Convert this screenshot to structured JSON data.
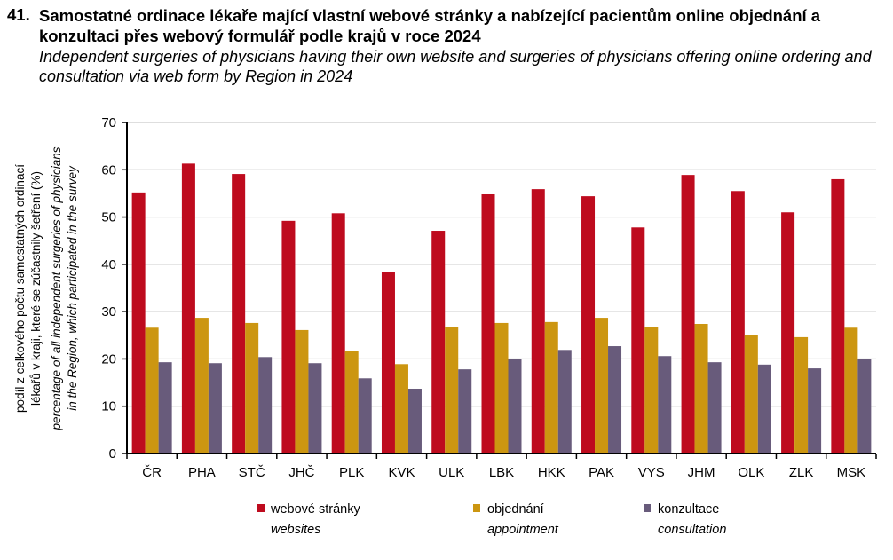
{
  "title": {
    "number": "41.",
    "cz": "Samostatné ordinace lékaře mající vlastní webové stránky a nabízející pacientům online objednání a konzultaci přes webový formulář podle krajů v roce 2024",
    "en": "Independent surgeries of physicians having their own website and surgeries of physicians offering online ordering and consultation via web form by Region in 2024"
  },
  "chart_data": {
    "type": "bar",
    "ylabel_cz_line1": "podíl z celkového počtu samostatných ordinací",
    "ylabel_cz_line2": "lékařů v kraji, které se zúčastnily šetření (%)",
    "ylabel_en_line1": "percentage of all independent surgeries of physicians",
    "ylabel_en_line2": "in the Region, which participated in the survey",
    "ylim": [
      0,
      70
    ],
    "yticks": [
      0,
      10,
      20,
      30,
      40,
      50,
      60,
      70
    ],
    "grid": true,
    "legend_position": "bottom",
    "categories": [
      "ČR",
      "PHA",
      "STČ",
      "JHČ",
      "PLK",
      "KVK",
      "ULK",
      "LBK",
      "HKK",
      "PAK",
      "VYS",
      "JHM",
      "OLK",
      "ZLK",
      "MSK"
    ],
    "series": [
      {
        "name": "webové stránky",
        "name_en": "websites",
        "color": "#be0b1e",
        "values": [
          55.2,
          61.3,
          59.1,
          49.2,
          50.8,
          38.3,
          47.1,
          54.8,
          55.9,
          54.4,
          47.8,
          58.9,
          55.5,
          51.0,
          58.0
        ]
      },
      {
        "name": "objednání",
        "name_en": "appointment",
        "color": "#cc9611",
        "values": [
          26.6,
          28.7,
          27.6,
          26.1,
          21.6,
          18.9,
          26.8,
          27.6,
          27.8,
          28.7,
          26.8,
          27.4,
          25.1,
          24.6,
          26.6
        ]
      },
      {
        "name": "konzultace",
        "name_en": "consultation",
        "color": "#685b7b",
        "values": [
          19.3,
          19.1,
          20.4,
          19.1,
          15.9,
          13.7,
          17.8,
          19.9,
          21.9,
          22.7,
          20.6,
          19.3,
          18.8,
          18.0,
          19.9
        ]
      }
    ]
  }
}
